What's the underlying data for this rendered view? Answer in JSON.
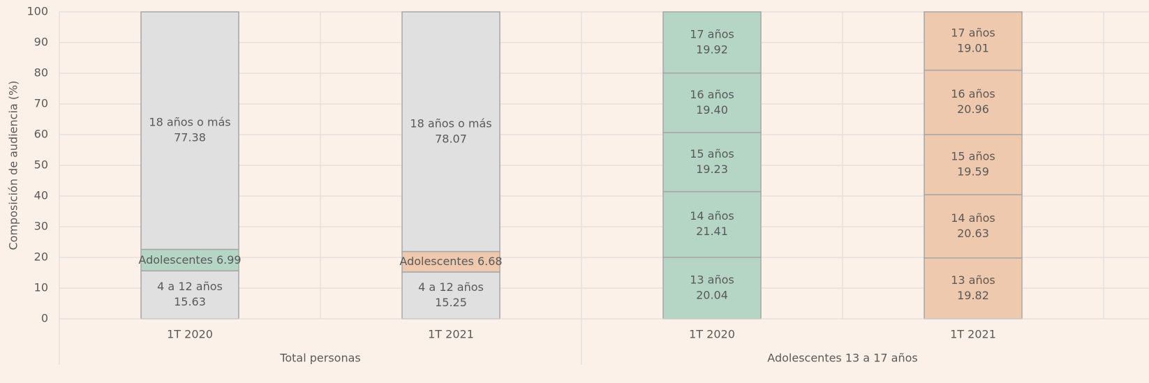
{
  "chart_data": {
    "type": "stacked_bar",
    "ylabel": "Composición de audiencia (%)",
    "ylim": [
      0,
      100
    ],
    "yticks": [
      0,
      10,
      20,
      30,
      40,
      50,
      60,
      70,
      80,
      90,
      100
    ],
    "grid": true,
    "groups": [
      {
        "name": "Total personas",
        "bars": [
          {
            "category": "1T 2020",
            "segments": [
              {
                "name": "4 a 12 años",
                "value": 15.63,
                "color": "#e0e0e0"
              },
              {
                "name": "Adolescentes",
                "value": 6.99,
                "color": "#b5d5c5"
              },
              {
                "name": "18 años o más",
                "value": 77.38,
                "color": "#e0e0e0"
              }
            ]
          },
          {
            "category": "1T 2021",
            "segments": [
              {
                "name": "4 a 12 años",
                "value": 15.25,
                "color": "#e0e0e0"
              },
              {
                "name": "Adolescentes",
                "value": 6.68,
                "color": "#efc9ad"
              },
              {
                "name": "18 años o más",
                "value": 78.07,
                "color": "#e0e0e0"
              }
            ]
          }
        ]
      },
      {
        "name": "Adolescentes 13 a 17 años",
        "bars": [
          {
            "category": "1T 2020",
            "segments": [
              {
                "name": "13 años",
                "value": 20.04,
                "value_label": "20.04",
                "color": "#b5d5c5"
              },
              {
                "name": "14 años",
                "value": 21.41,
                "color": "#b5d5c5"
              },
              {
                "name": "15 años",
                "value": 19.23,
                "color": "#b5d5c5"
              },
              {
                "name": "16 años",
                "value": 19.4,
                "value_label": "19.40",
                "color": "#b5d5c5"
              },
              {
                "name": "17 años",
                "value": 19.92,
                "color": "#b5d5c5"
              }
            ]
          },
          {
            "category": "1T 2021",
            "segments": [
              {
                "name": "13 años",
                "value": 19.82,
                "color": "#efc9ad"
              },
              {
                "name": "14 años",
                "value": 20.63,
                "color": "#efc9ad"
              },
              {
                "name": "15 años",
                "value": 19.59,
                "color": "#efc9ad"
              },
              {
                "name": "16 años",
                "value": 20.96,
                "color": "#efc9ad"
              },
              {
                "name": "17 años",
                "value": 19.01,
                "color": "#efc9ad"
              }
            ]
          }
        ]
      }
    ]
  }
}
